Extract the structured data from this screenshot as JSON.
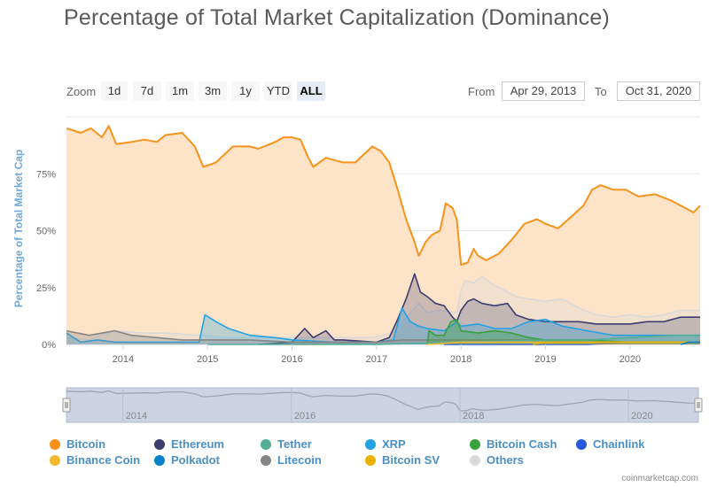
{
  "title": "Percentage of Total Market Capitalization (Dominance)",
  "zoom": {
    "label": "Zoom",
    "buttons": [
      "1d",
      "7d",
      "1m",
      "3m",
      "1y",
      "YTD",
      "ALL"
    ],
    "active": "ALL"
  },
  "range": {
    "from_label": "From",
    "from_value": "Apr 29, 2013",
    "to_label": "To",
    "to_value": "Oct 31, 2020"
  },
  "credit": "coinmarketcap.com",
  "chart_data": {
    "type": "area",
    "title": "Percentage of Total Market Capitalization (Dominance)",
    "ylabel": "Percentage of Total Market Cap",
    "xlabel": "",
    "x_range": [
      2013.33,
      2020.83
    ],
    "ylim": [
      0,
      100
    ],
    "y_ticks": [
      {
        "v": 0,
        "label": "0%"
      },
      {
        "v": 25,
        "label": "25%"
      },
      {
        "v": 50,
        "label": "50%"
      },
      {
        "v": 75,
        "label": "75%"
      }
    ],
    "x_ticks": [
      "2014",
      "2015",
      "2016",
      "2017",
      "2018",
      "2019",
      "2020"
    ],
    "navigator_ticks": [
      "2014",
      "2016",
      "2018",
      "2020"
    ],
    "grid": true,
    "legend_position": "bottom",
    "series": [
      {
        "name": "Bitcoin",
        "color": "#f7931a",
        "fill": "#fde3c8",
        "points": [
          [
            2013.33,
            95
          ],
          [
            2013.5,
            93
          ],
          [
            2013.62,
            95
          ],
          [
            2013.75,
            91
          ],
          [
            2013.83,
            96
          ],
          [
            2013.92,
            88
          ],
          [
            2014.1,
            89
          ],
          [
            2014.25,
            90
          ],
          [
            2014.4,
            89
          ],
          [
            2014.5,
            92
          ],
          [
            2014.7,
            93
          ],
          [
            2014.85,
            87
          ],
          [
            2014.95,
            78
          ],
          [
            2015.1,
            80
          ],
          [
            2015.3,
            87
          ],
          [
            2015.5,
            87
          ],
          [
            2015.6,
            86
          ],
          [
            2015.8,
            89
          ],
          [
            2015.9,
            91
          ],
          [
            2016.0,
            91
          ],
          [
            2016.1,
            90
          ],
          [
            2016.18,
            83
          ],
          [
            2016.25,
            78
          ],
          [
            2016.4,
            82
          ],
          [
            2016.6,
            80
          ],
          [
            2016.75,
            80
          ],
          [
            2016.95,
            87
          ],
          [
            2017.05,
            85
          ],
          [
            2017.15,
            80
          ],
          [
            2017.25,
            68
          ],
          [
            2017.35,
            55
          ],
          [
            2017.45,
            45
          ],
          [
            2017.5,
            39
          ],
          [
            2017.58,
            45
          ],
          [
            2017.65,
            48
          ],
          [
            2017.75,
            50
          ],
          [
            2017.82,
            62
          ],
          [
            2017.9,
            60
          ],
          [
            2017.95,
            55
          ],
          [
            2018.0,
            35
          ],
          [
            2018.08,
            36
          ],
          [
            2018.15,
            42
          ],
          [
            2018.2,
            39
          ],
          [
            2018.3,
            37
          ],
          [
            2018.45,
            40
          ],
          [
            2018.6,
            46
          ],
          [
            2018.75,
            53
          ],
          [
            2018.9,
            55
          ],
          [
            2019.0,
            53
          ],
          [
            2019.15,
            51
          ],
          [
            2019.3,
            56
          ],
          [
            2019.45,
            61
          ],
          [
            2019.55,
            68
          ],
          [
            2019.65,
            70
          ],
          [
            2019.8,
            68
          ],
          [
            2019.95,
            68
          ],
          [
            2020.1,
            65
          ],
          [
            2020.3,
            66
          ],
          [
            2020.5,
            63
          ],
          [
            2020.65,
            60
          ],
          [
            2020.75,
            58
          ],
          [
            2020.83,
            61
          ]
        ]
      },
      {
        "name": "Ethereum",
        "color": "#3c3c6e",
        "fill": "rgba(60,60,110,0.25)",
        "points": [
          [
            2015.6,
            0
          ],
          [
            2016.0,
            1
          ],
          [
            2016.15,
            7
          ],
          [
            2016.25,
            3
          ],
          [
            2016.4,
            6
          ],
          [
            2016.5,
            2
          ],
          [
            2016.6,
            2
          ],
          [
            2017.0,
            1
          ],
          [
            2017.15,
            3
          ],
          [
            2017.25,
            11
          ],
          [
            2017.35,
            20
          ],
          [
            2017.45,
            31
          ],
          [
            2017.52,
            23
          ],
          [
            2017.6,
            21
          ],
          [
            2017.7,
            18
          ],
          [
            2017.8,
            17
          ],
          [
            2017.9,
            12
          ],
          [
            2017.95,
            10
          ],
          [
            2018.0,
            15
          ],
          [
            2018.08,
            19
          ],
          [
            2018.15,
            20
          ],
          [
            2018.25,
            18
          ],
          [
            2018.4,
            17
          ],
          [
            2018.55,
            18
          ],
          [
            2018.65,
            13
          ],
          [
            2018.8,
            11
          ],
          [
            2019.0,
            10
          ],
          [
            2019.2,
            10
          ],
          [
            2019.4,
            10
          ],
          [
            2019.6,
            9
          ],
          [
            2019.8,
            9
          ],
          [
            2020.0,
            9
          ],
          [
            2020.2,
            10
          ],
          [
            2020.4,
            10
          ],
          [
            2020.6,
            12
          ],
          [
            2020.83,
            12
          ]
        ]
      },
      {
        "name": "XRP",
        "color": "#23a1e2",
        "fill": "rgba(35,161,226,0.3)",
        "points": [
          [
            2013.33,
            5
          ],
          [
            2013.5,
            1
          ],
          [
            2013.7,
            2
          ],
          [
            2013.9,
            1
          ],
          [
            2014.2,
            1
          ],
          [
            2014.5,
            1
          ],
          [
            2014.9,
            1
          ],
          [
            2014.97,
            13
          ],
          [
            2015.1,
            10
          ],
          [
            2015.25,
            7
          ],
          [
            2015.5,
            4
          ],
          [
            2015.8,
            3
          ],
          [
            2016.0,
            2
          ],
          [
            2016.5,
            1
          ],
          [
            2017.0,
            1
          ],
          [
            2017.2,
            2
          ],
          [
            2017.3,
            16
          ],
          [
            2017.4,
            10
          ],
          [
            2017.5,
            8
          ],
          [
            2017.6,
            7
          ],
          [
            2017.8,
            6
          ],
          [
            2017.95,
            10
          ],
          [
            2018.0,
            8
          ],
          [
            2018.2,
            9
          ],
          [
            2018.4,
            7
          ],
          [
            2018.6,
            7
          ],
          [
            2018.8,
            10
          ],
          [
            2019.0,
            11
          ],
          [
            2019.2,
            8
          ],
          [
            2019.5,
            6
          ],
          [
            2019.8,
            4
          ],
          [
            2020.0,
            4
          ],
          [
            2020.3,
            4
          ],
          [
            2020.6,
            4
          ],
          [
            2020.83,
            4
          ]
        ]
      },
      {
        "name": "Bitcoin Cash",
        "color": "#38a13d",
        "fill": "rgba(56,161,61,0.35)",
        "points": [
          [
            2017.6,
            0
          ],
          [
            2017.62,
            6
          ],
          [
            2017.7,
            4
          ],
          [
            2017.8,
            4
          ],
          [
            2017.88,
            10
          ],
          [
            2017.95,
            11
          ],
          [
            2018.0,
            6
          ],
          [
            2018.2,
            5
          ],
          [
            2018.4,
            6
          ],
          [
            2018.6,
            5
          ],
          [
            2018.8,
            3
          ],
          [
            2019.0,
            2
          ],
          [
            2019.5,
            2
          ],
          [
            2020.0,
            1
          ],
          [
            2020.83,
            1
          ]
        ]
      },
      {
        "name": "Litecoin",
        "color": "#858585",
        "fill": "rgba(133,133,133,0.3)",
        "points": [
          [
            2013.33,
            6
          ],
          [
            2013.6,
            4
          ],
          [
            2013.9,
            6
          ],
          [
            2014.1,
            4
          ],
          [
            2014.4,
            3
          ],
          [
            2014.7,
            2
          ],
          [
            2015.0,
            2
          ],
          [
            2015.5,
            2
          ],
          [
            2016.0,
            1
          ],
          [
            2016.5,
            1
          ],
          [
            2017.0,
            1
          ],
          [
            2017.3,
            2
          ],
          [
            2017.5,
            2
          ],
          [
            2017.95,
            2
          ],
          [
            2018.2,
            2
          ],
          [
            2018.5,
            2
          ],
          [
            2019.0,
            2
          ],
          [
            2019.4,
            2
          ],
          [
            2019.8,
            1
          ],
          [
            2020.3,
            1
          ],
          [
            2020.83,
            1
          ]
        ]
      },
      {
        "name": "Others",
        "color": "#d9d9d9",
        "fill": "rgba(217,217,217,0.35)",
        "points": [
          [
            2013.33,
            3
          ],
          [
            2013.6,
            2
          ],
          [
            2013.9,
            6
          ],
          [
            2014.2,
            5
          ],
          [
            2014.5,
            5
          ],
          [
            2014.9,
            4
          ],
          [
            2015.2,
            3
          ],
          [
            2015.5,
            3
          ],
          [
            2016.0,
            3
          ],
          [
            2016.3,
            3
          ],
          [
            2016.6,
            3
          ],
          [
            2016.95,
            3
          ],
          [
            2017.2,
            5
          ],
          [
            2017.35,
            12
          ],
          [
            2017.5,
            18
          ],
          [
            2017.6,
            14
          ],
          [
            2017.75,
            15
          ],
          [
            2017.95,
            14
          ],
          [
            2018.0,
            24
          ],
          [
            2018.05,
            28
          ],
          [
            2018.15,
            27
          ],
          [
            2018.25,
            30
          ],
          [
            2018.35,
            27
          ],
          [
            2018.5,
            24
          ],
          [
            2018.65,
            21
          ],
          [
            2018.8,
            20
          ],
          [
            2019.0,
            19
          ],
          [
            2019.2,
            20
          ],
          [
            2019.4,
            16
          ],
          [
            2019.6,
            13
          ],
          [
            2019.8,
            12
          ],
          [
            2020.0,
            13
          ],
          [
            2020.2,
            12
          ],
          [
            2020.4,
            13
          ],
          [
            2020.6,
            15
          ],
          [
            2020.83,
            15
          ]
        ]
      },
      {
        "name": "Tether",
        "color": "#53ae94",
        "fill": "rgba(83,174,148,0.3)",
        "points": [
          [
            2015.0,
            0
          ],
          [
            2017.0,
            0
          ],
          [
            2018.0,
            1
          ],
          [
            2019.0,
            2
          ],
          [
            2019.5,
            2
          ],
          [
            2020.0,
            3
          ],
          [
            2020.5,
            4
          ],
          [
            2020.83,
            4
          ]
        ]
      },
      {
        "name": "Chainlink",
        "color": "#2a5ada",
        "fill": "rgba(42,90,218,0.2)",
        "points": [
          [
            2017.8,
            0
          ],
          [
            2019.5,
            0
          ],
          [
            2020.0,
            1
          ],
          [
            2020.5,
            1
          ],
          [
            2020.83,
            1
          ]
        ]
      },
      {
        "name": "Binance Coin",
        "color": "#f3ba2f",
        "fill": "rgba(243,186,47,0.25)",
        "points": [
          [
            2017.6,
            0
          ],
          [
            2018.0,
            1
          ],
          [
            2019.0,
            1
          ],
          [
            2019.5,
            1
          ],
          [
            2020.0,
            1
          ],
          [
            2020.83,
            1
          ]
        ]
      },
      {
        "name": "Polkadot",
        "color": "#0a81c7",
        "fill": "rgba(10,129,199,0.2)",
        "points": [
          [
            2020.6,
            0
          ],
          [
            2020.7,
            1
          ],
          [
            2020.83,
            1
          ]
        ]
      },
      {
        "name": "Bitcoin SV",
        "color": "#eab300",
        "fill": "rgba(234,179,0,0.25)",
        "points": [
          [
            2018.85,
            0
          ],
          [
            2019.0,
            1
          ],
          [
            2019.5,
            1
          ],
          [
            2020.0,
            1
          ],
          [
            2020.83,
            1
          ]
        ]
      }
    ],
    "legend": [
      {
        "name": "Bitcoin",
        "color": "#f7931a"
      },
      {
        "name": "Ethereum",
        "color": "#3c3c6e"
      },
      {
        "name": "Tether",
        "color": "#53ae94"
      },
      {
        "name": "XRP",
        "color": "#23a1e2"
      },
      {
        "name": "Bitcoin Cash",
        "color": "#38a13d"
      },
      {
        "name": "Chainlink",
        "color": "#2a5ada"
      },
      {
        "name": "Binance Coin",
        "color": "#f3ba2f"
      },
      {
        "name": "Polkadot",
        "color": "#0a81c7"
      },
      {
        "name": "Litecoin",
        "color": "#858585"
      },
      {
        "name": "Bitcoin SV",
        "color": "#eab300"
      },
      {
        "name": "Others",
        "color": "#d9d9d9"
      }
    ]
  }
}
